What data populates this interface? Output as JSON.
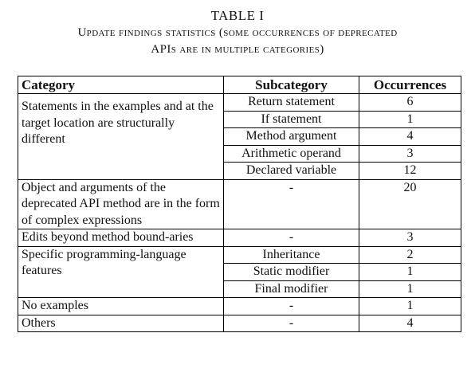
{
  "table_number": "TABLE I",
  "caption_line1": "Update findings statistics (some occurrences of deprecated",
  "caption_line2": "APIs are in multiple categories)",
  "headers": {
    "category": "Category",
    "subcategory": "Subcategory",
    "occurrences": "Occurrences"
  },
  "groups": [
    {
      "category": "Statements in the examples and at the target location are structurally different",
      "rows": [
        {
          "subcategory": "Return statement",
          "occurrences": "6"
        },
        {
          "subcategory": "If statement",
          "occurrences": "1"
        },
        {
          "subcategory": "Method argument",
          "occurrences": "4"
        },
        {
          "subcategory": "Arithmetic operand",
          "occurrences": "3"
        },
        {
          "subcategory": "Declared variable",
          "occurrences": "12"
        }
      ]
    },
    {
      "category": "Object and arguments of the deprecated API method are in the form of complex expressions",
      "rows": [
        {
          "subcategory": "-",
          "occurrences": "20"
        }
      ]
    },
    {
      "category": "Edits beyond method bound-aries",
      "rows": [
        {
          "subcategory": "-",
          "occurrences": "3"
        }
      ]
    },
    {
      "category": "Specific programming-language features",
      "rows": [
        {
          "subcategory": "Inheritance",
          "occurrences": "2"
        },
        {
          "subcategory": "Static modifier",
          "occurrences": "1"
        },
        {
          "subcategory": "Final modifier",
          "occurrences": "1"
        }
      ]
    },
    {
      "category": "No examples",
      "rows": [
        {
          "subcategory": "-",
          "occurrences": "1"
        }
      ]
    },
    {
      "category": "Others",
      "rows": [
        {
          "subcategory": "-",
          "occurrences": "4"
        }
      ]
    }
  ]
}
